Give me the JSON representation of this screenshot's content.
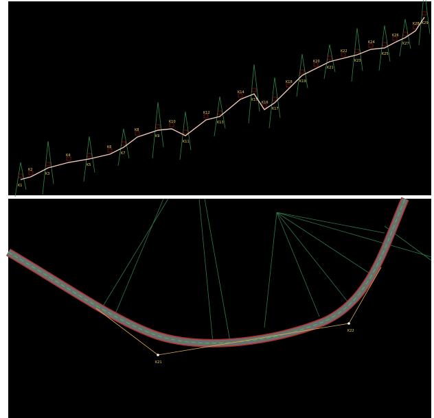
{
  "top_view": {
    "points": [
      "K1",
      "K2",
      "K3",
      "K4",
      "K5",
      "K6",
      "K7",
      "K8",
      "K9",
      "K10",
      "K11",
      "K12",
      "K13",
      "K14",
      "K15",
      "K16",
      "K17",
      "K18",
      "K19",
      "K20",
      "K21",
      "K22",
      "K23",
      "K24",
      "K25",
      "K26",
      "K27",
      "K28",
      "K29"
    ]
  },
  "bottom_view": {
    "points": [
      "K21",
      "K22"
    ]
  }
}
